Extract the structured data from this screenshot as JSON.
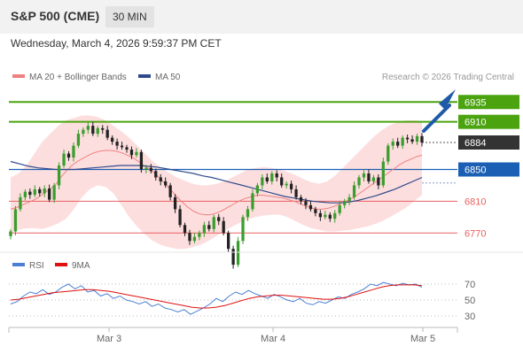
{
  "header": {
    "title": "S&P 500 (CME)",
    "timeframe": "30 MIN",
    "datetime": "Wednesday, March 4, 2026 9:59:37 PM CET"
  },
  "legend": {
    "ma20_label": "MA 20 + Bollinger Bands",
    "ma50_label": "MA 50",
    "credit": "Research © 2026 Trading Central",
    "rsi_label": "RSI",
    "rsi_ma_label": "9MA"
  },
  "colors": {
    "bollinger_fill": "#fddede",
    "ma20": "#f08080",
    "ma50": "#2e4a8c",
    "resistance": "#4ba40f",
    "support": "#e86060",
    "pivot": "#1a5fb4",
    "last_price": "#333333",
    "candle_up": "#3a9e2e",
    "candle_down": "#222222",
    "arrow": "#1f5aa8",
    "rsi": "#4a7fd4",
    "rsi_ma": "#e01010"
  },
  "chart_data": {
    "type": "candlestick",
    "title": "S&P 500 (CME)",
    "timeframe": "30 MIN",
    "x_labels": [
      "Mar 3",
      "Mar 4",
      "Mar 5"
    ],
    "ylim": [
      6748,
      6952
    ],
    "levels": [
      {
        "label": "6935",
        "value": 6935,
        "kind": "resistance"
      },
      {
        "label": "6910",
        "value": 6910,
        "kind": "resistance"
      },
      {
        "label": "6884",
        "value": 6884,
        "kind": "last"
      },
      {
        "label": "6850",
        "value": 6850,
        "kind": "pivot"
      },
      {
        "label": "6810",
        "value": 6810,
        "kind": "support"
      },
      {
        "label": "6770",
        "value": 6770,
        "kind": "support"
      }
    ],
    "close": [
      6772,
      6800,
      6815,
      6822,
      6818,
      6825,
      6820,
      6826,
      6812,
      6830,
      6855,
      6870,
      6865,
      6880,
      6895,
      6900,
      6905,
      6895,
      6902,
      6900,
      6890,
      6885,
      6880,
      6878,
      6875,
      6868,
      6872,
      6850,
      6852,
      6848,
      6840,
      6835,
      6830,
      6815,
      6800,
      6780,
      6770,
      6760,
      6765,
      6770,
      6780,
      6775,
      6790,
      6785,
      6770,
      6750,
      6730,
      6760,
      6790,
      6800,
      6820,
      6830,
      6840,
      6835,
      6845,
      6840,
      6830,
      6832,
      6825,
      6815,
      6810,
      6805,
      6800,
      6795,
      6790,
      6793,
      6788,
      6795,
      6805,
      6810,
      6815,
      6830,
      6840,
      6845,
      6835,
      6840,
      6830,
      6860,
      6880,
      6885,
      6880,
      6890,
      6888,
      6885,
      6892,
      6884
    ],
    "ma20": [
      6800,
      6802,
      6805,
      6808,
      6811,
      6815,
      6820,
      6825,
      6830,
      6840,
      6848,
      6855,
      6860,
      6864,
      6868,
      6871,
      6873,
      6874,
      6874,
      6873,
      6871,
      6868,
      6865,
      6860,
      6855,
      6850,
      6845,
      6838,
      6830,
      6823,
      6815,
      6808,
      6802,
      6797,
      6794,
      6793,
      6793,
      6795,
      6798,
      6802,
      6806,
      6810,
      6813,
      6815,
      6817,
      6818,
      6817,
      6816,
      6815,
      6814,
      6812,
      6810,
      6807,
      6804,
      6802,
      6800,
      6800,
      6801,
      6803,
      6806,
      6809,
      6812,
      6816,
      6821,
      6826,
      6831,
      6836,
      6841,
      6846,
      6851,
      6856,
      6860,
      6863,
      6866,
      6868
    ],
    "ma50": [
      6860,
      6857,
      6854,
      6852,
      6851,
      6850,
      6850,
      6850,
      6851,
      6852,
      6853,
      6854,
      6855,
      6855,
      6855,
      6854,
      6853,
      6851,
      6849,
      6847,
      6845,
      6842,
      6840,
      6837,
      6834,
      6831,
      6828,
      6825,
      6822,
      6819,
      6816,
      6814,
      6812,
      6810,
      6809,
      6808,
      6808,
      6809,
      6811,
      6814,
      6817,
      6821,
      6825,
      6830,
      6835,
      6840
    ],
    "bb_upper": [
      6840,
      6845,
      6855,
      6870,
      6885,
      6895,
      6905,
      6912,
      6915,
      6918,
      6918,
      6916,
      6912,
      6905,
      6898,
      6890,
      6880,
      6870,
      6860,
      6852,
      6846,
      6840,
      6836,
      6832,
      6830,
      6830,
      6832,
      6835,
      6840,
      6845,
      6850,
      6852,
      6853,
      6852,
      6850,
      6847,
      6843,
      6838,
      6834,
      6832,
      6835,
      6842,
      6852,
      6862,
      6872,
      6882,
      6892,
      6900,
      6906,
      6910,
      6912,
      6912,
      6911
    ],
    "bb_lower": [
      6770,
      6774,
      6776,
      6776,
      6775,
      6778,
      6782,
      6788,
      6800,
      6815,
      6825,
      6830,
      6828,
      6820,
      6805,
      6790,
      6778,
      6768,
      6760,
      6755,
      6752,
      6750,
      6750,
      6752,
      6755,
      6760,
      6766,
      6772,
      6778,
      6783,
      6787,
      6790,
      6792,
      6793,
      6793,
      6790,
      6785,
      6780,
      6776,
      6774,
      6772,
      6772,
      6773,
      6774,
      6776,
      6778,
      6781,
      6785,
      6790,
      6796,
      6802,
      6810,
      6818
    ],
    "rsi_levels": [
      70,
      50,
      30
    ],
    "rsi": [
      45,
      48,
      55,
      60,
      58,
      63,
      57,
      60,
      66,
      70,
      64,
      68,
      60,
      62,
      55,
      58,
      52,
      55,
      50,
      48,
      45,
      48,
      42,
      45,
      40,
      38,
      35,
      38,
      32,
      36,
      40,
      45,
      52,
      48,
      55,
      60,
      57,
      62,
      58,
      55,
      52,
      57,
      54,
      50,
      48,
      52,
      46,
      44,
      48,
      46,
      50,
      54,
      52,
      57,
      60,
      64,
      70,
      68,
      72,
      70,
      68,
      71,
      69,
      70,
      66
    ],
    "rsi_ma": [
      50,
      51,
      53,
      55,
      57,
      59,
      60,
      61,
      62,
      63,
      63,
      62,
      61,
      59,
      57,
      55,
      53,
      51,
      49,
      47,
      45,
      43,
      41,
      40,
      40,
      41,
      43,
      46,
      49,
      52,
      54,
      55,
      56,
      56,
      55,
      54,
      53,
      52,
      51,
      51,
      52,
      54,
      57,
      60,
      63,
      66,
      68,
      69,
      69,
      69,
      68
    ]
  }
}
